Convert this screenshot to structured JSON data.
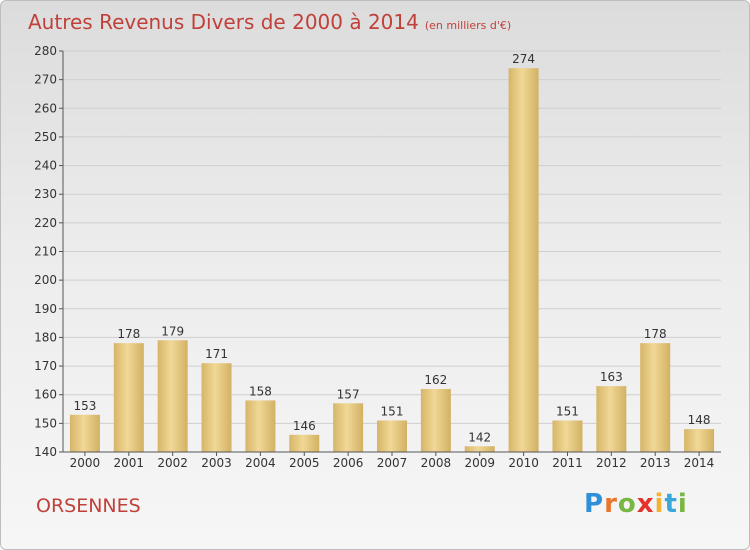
{
  "title": "Autres Revenus Divers de 2000 à 2014",
  "subtitle": "(en milliers d'€)",
  "place": "ORSENNES",
  "logo": "Proxiti",
  "chart_data": {
    "type": "bar",
    "title": "Autres Revenus Divers de 2000 à 2014",
    "subtitle": "(en milliers d'€)",
    "categories": [
      "2000",
      "2001",
      "2002",
      "2003",
      "2004",
      "2005",
      "2006",
      "2007",
      "2008",
      "2009",
      "2010",
      "2011",
      "2012",
      "2013",
      "2014"
    ],
    "values": [
      153,
      178,
      179,
      171,
      158,
      146,
      157,
      151,
      162,
      142,
      274,
      151,
      163,
      178,
      148
    ],
    "ylim": [
      140,
      280
    ],
    "yticks": [
      140,
      150,
      160,
      170,
      180,
      190,
      200,
      210,
      220,
      230,
      240,
      250,
      260,
      270,
      280
    ],
    "grid": true,
    "bar_color": "#e6c77c",
    "title_color": "#c0413a"
  }
}
